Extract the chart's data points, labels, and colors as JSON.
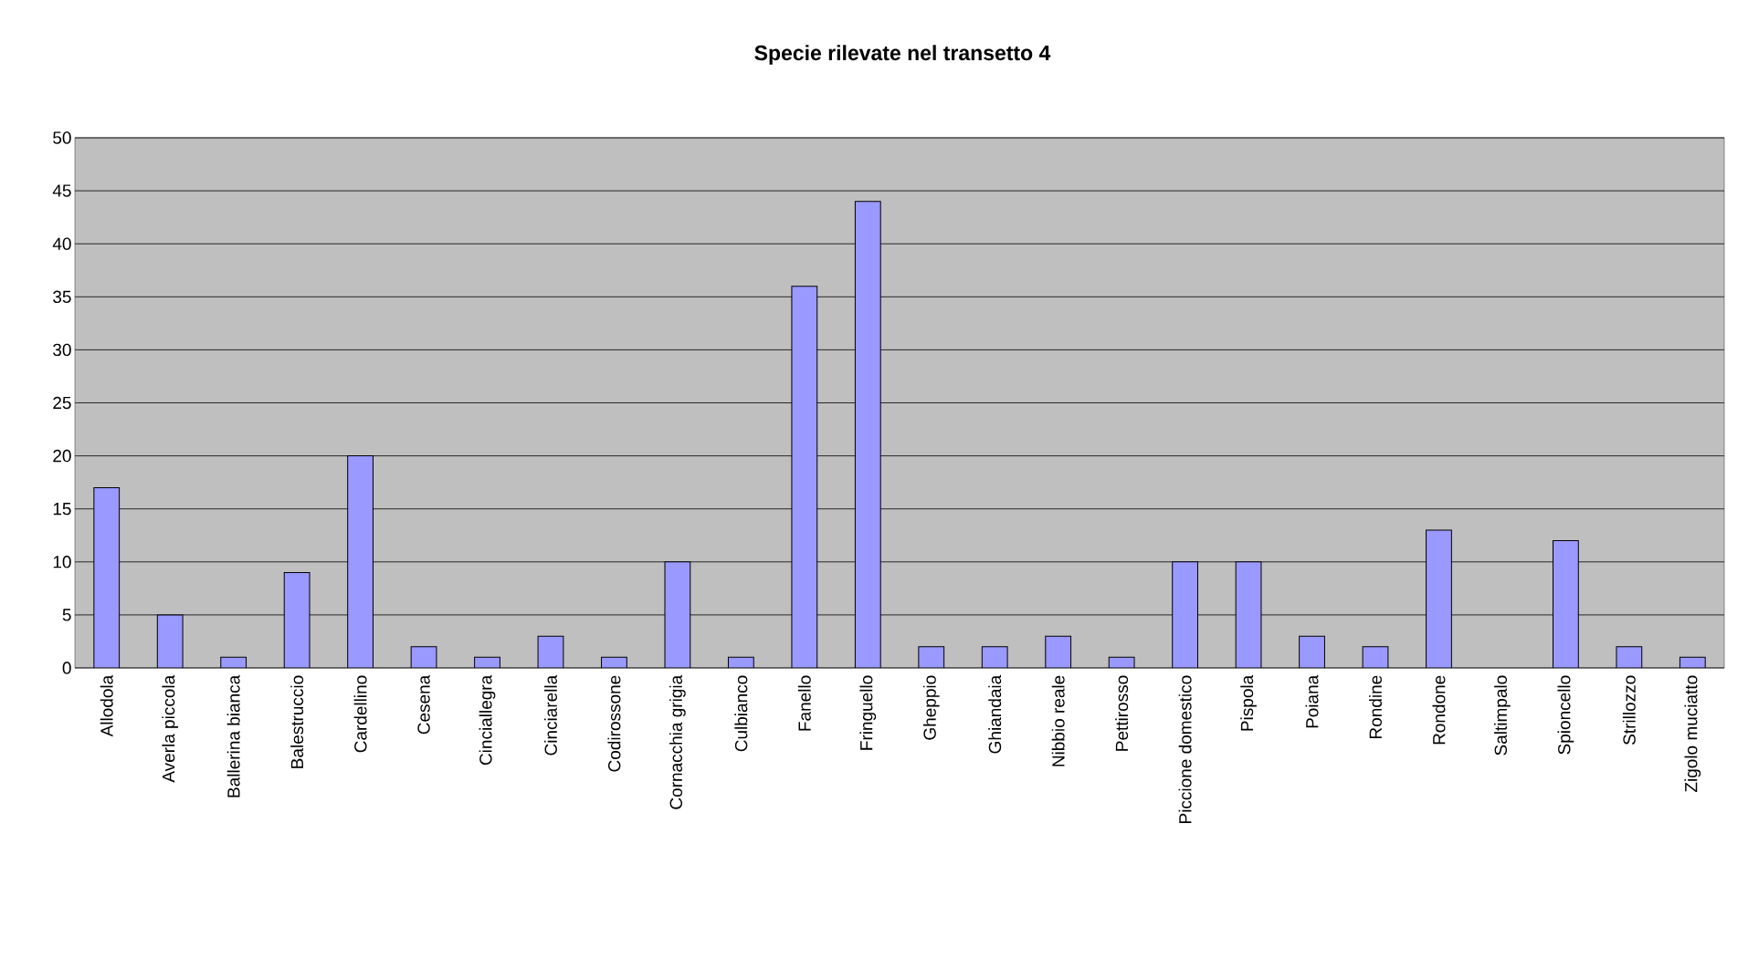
{
  "chart_data": {
    "type": "bar",
    "title": "Specie rilevate nel transetto 4",
    "categories": [
      "Allodola",
      "Averla piccola",
      "Ballerina bianca",
      "Balestruccio",
      "Cardellino",
      "Cesena",
      "Cinciallegra",
      "Cinciarella",
      "Codirossone",
      "Cornacchia grigia",
      "Culbianco",
      "Fanello",
      "Fringuello",
      "Gheppio",
      "Ghiandaia",
      "Nibbio reale",
      "Pettirosso",
      "Piccione domestico",
      "Pispola",
      "Poiana",
      "Rondine",
      "Rondone",
      "Saltimpalo",
      "Spioncello",
      "Strillozzo",
      "Zigolo muciatto"
    ],
    "values": [
      17,
      5,
      1,
      9,
      20,
      2,
      1,
      3,
      1,
      10,
      1,
      36,
      44,
      2,
      2,
      3,
      1,
      10,
      10,
      3,
      2,
      13,
      0,
      12,
      2,
      1
    ],
    "color": "#9999ff",
    "ylim": [
      0,
      50
    ],
    "yticks": [
      0,
      5,
      10,
      15,
      20,
      25,
      30,
      35,
      40,
      45,
      50
    ],
    "grid": "y"
  }
}
